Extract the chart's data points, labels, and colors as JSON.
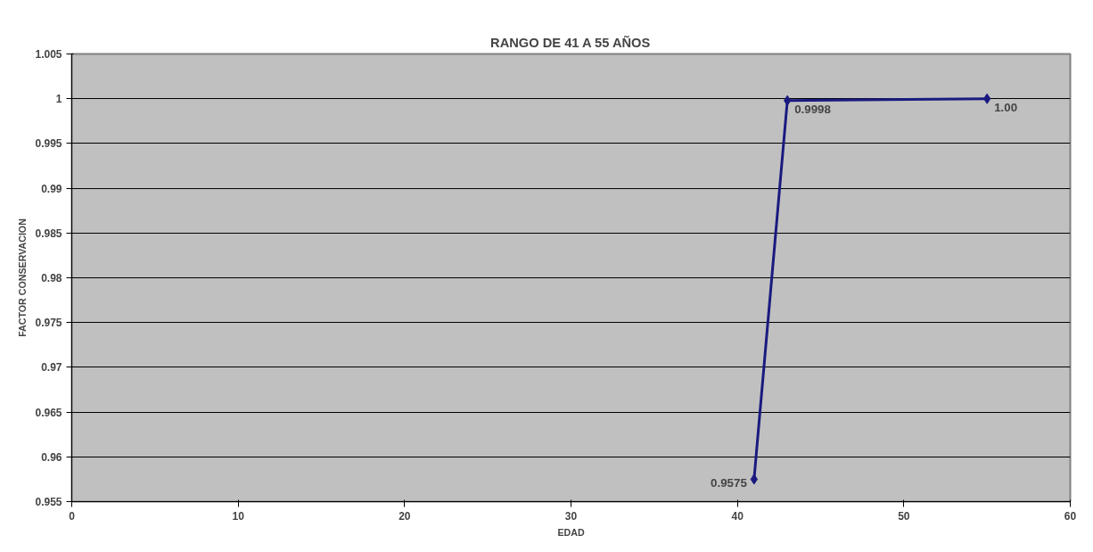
{
  "chart_data": {
    "type": "line",
    "title": "RANGO DE 41 A 55 AÑOS",
    "xlabel": "EDAD",
    "ylabel": "FACTOR CONSERVACION",
    "x": [
      41,
      43,
      55
    ],
    "series": [
      {
        "color": "#1a1a80",
        "values": [
          0.9575,
          0.9998,
          1.0
        ],
        "value_labels": [
          "0.9575",
          "0.9998",
          "1.00"
        ]
      }
    ],
    "xlim": [
      0,
      60
    ],
    "xticks": [
      0,
      10,
      20,
      30,
      40,
      50,
      60
    ],
    "ylim": [
      0.955,
      1.005
    ],
    "yticks": [
      0.955,
      0.96,
      0.965,
      0.97,
      0.975,
      0.98,
      0.985,
      0.99,
      0.995,
      1,
      1.005
    ],
    "grid": "y",
    "marker": "diamond",
    "line_style": "solid"
  }
}
